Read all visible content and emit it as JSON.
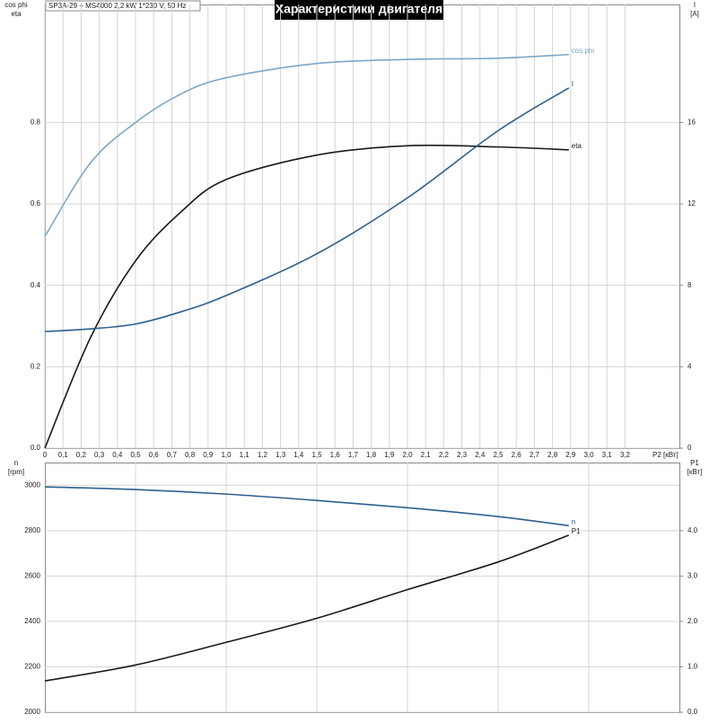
{
  "chart_data": [
    {
      "type": "line",
      "title": "Характеристики двигателя",
      "subtitle": "SP3A-29 + MS4000   2,2 kW   1*230 V, 50 Hz",
      "ylabel": [
        "cos phi",
        "eta"
      ],
      "y2label": [
        "I",
        "[A]"
      ],
      "xlabel": "P2 [кВт]",
      "x": [
        0,
        0.25,
        0.5,
        0.75,
        1.0,
        1.5,
        2.0,
        2.5,
        2.89
      ],
      "xlim": [
        0,
        3.5
      ],
      "xticks": [
        0,
        {
          "value": 0.1,
          "label": "0,1"
        },
        {
          "value": 0.2,
          "label": "0,2"
        },
        {
          "value": 0.3,
          "label": "0,3"
        },
        {
          "value": 0.4,
          "label": "0,4"
        },
        {
          "value": 0.5,
          "label": "0,5"
        },
        {
          "value": 0.6,
          "label": "0,6"
        },
        {
          "value": 0.7,
          "label": "0,7"
        },
        {
          "value": 0.8,
          "label": "0,8"
        },
        {
          "value": 0.9,
          "label": "0,9"
        },
        {
          "value": 1.0,
          "label": "1,0"
        },
        {
          "value": 1.1,
          "label": "1,1"
        },
        {
          "value": 1.2,
          "label": "1,2"
        },
        {
          "value": 1.3,
          "label": "1,3"
        },
        {
          "value": 1.4,
          "label": "1,4"
        },
        {
          "value": 1.5,
          "label": "1,5"
        },
        {
          "value": 1.6,
          "label": "1,6"
        },
        {
          "value": 1.7,
          "label": "1,7"
        },
        {
          "value": 1.8,
          "label": "1,8"
        },
        {
          "value": 1.9,
          "label": "1,9"
        },
        {
          "value": 2.0,
          "label": "2,0"
        },
        {
          "value": 2.1,
          "label": "2,1"
        },
        {
          "value": 2.2,
          "label": "2,2"
        },
        {
          "value": 2.3,
          "label": "2,3"
        },
        {
          "value": 2.4,
          "label": "2,4"
        },
        {
          "value": 2.5,
          "label": "2,5"
        },
        {
          "value": 2.6,
          "label": "2,6"
        },
        {
          "value": 2.7,
          "label": "2,7"
        },
        {
          "value": 2.8,
          "label": "2,8"
        },
        {
          "value": 2.9,
          "label": "2,9"
        },
        {
          "value": 3.0,
          "label": "3,0"
        },
        {
          "value": 3.1,
          "label": "3,1"
        },
        {
          "value": 3.2,
          "label": "3,2"
        }
      ],
      "ylim": [
        0,
        1.09
      ],
      "yticks": [
        {
          "value": 0,
          "label": "0.0"
        },
        {
          "value": 0.2,
          "label": "0.2"
        },
        {
          "value": 0.4,
          "label": "0.4"
        },
        {
          "value": 0.6,
          "label": "0.6"
        },
        {
          "value": 0.8,
          "label": "0.8"
        }
      ],
      "y2lim": [
        0,
        21.8
      ],
      "y2ticks": [
        0,
        4,
        8,
        12,
        16
      ],
      "grid": true,
      "series": [
        {
          "name": "cos phi",
          "color": "#7ba7c9",
          "values": [
            0.52,
            0.7,
            0.8,
            0.87,
            0.91,
            0.945,
            0.955,
            0.958,
            0.967
          ]
        },
        {
          "name": "eta",
          "color": "#1a1a1a",
          "values": [
            0,
            0.27,
            0.46,
            0.58,
            0.66,
            0.72,
            0.743,
            0.74,
            0.733
          ]
        },
        {
          "name": "I",
          "color": "#2d5f8f",
          "axis": "y2",
          "values": [
            5.73,
            5.86,
            6.1,
            6.7,
            7.5,
            9.55,
            12.3,
            15.6,
            17.7
          ]
        }
      ]
    },
    {
      "type": "line",
      "ylabel": [
        "n",
        "[rpm]"
      ],
      "y2label": [
        "P1",
        "[кВт]"
      ],
      "x": [
        0,
        0.5,
        1.0,
        1.5,
        2.0,
        2.5,
        2.89
      ],
      "xlim": [
        0,
        3.5
      ],
      "ylim": [
        2000,
        3100
      ],
      "yticks": [
        2000,
        2200,
        2400,
        2600,
        2800,
        3000
      ],
      "y2lim": [
        0,
        5.5
      ],
      "y2ticks": [
        {
          "value": 0,
          "label": "0.0"
        },
        {
          "value": 1,
          "label": "1.0"
        },
        {
          "value": 2,
          "label": "2.0"
        },
        {
          "value": 3,
          "label": "3.0"
        },
        {
          "value": 4,
          "label": "4.0"
        }
      ],
      "grid": true,
      "series": [
        {
          "name": "n",
          "color": "#2d5f8f",
          "values": [
            2993,
            2981,
            2961,
            2933,
            2901,
            2862,
            2822
          ]
        },
        {
          "name": "P1",
          "color": "#1a1a1a",
          "axis": "y2",
          "values": [
            0.69,
            1.04,
            1.54,
            2.07,
            2.7,
            3.31,
            3.9
          ]
        }
      ]
    }
  ]
}
